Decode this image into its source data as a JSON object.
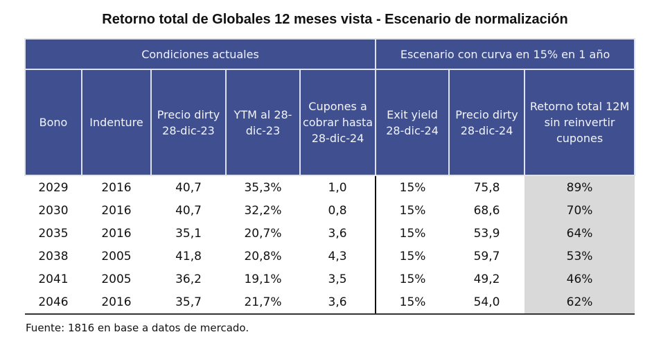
{
  "title": "Retorno total de Globales 12 meses vista - Escenario de normalización",
  "colors": {
    "header_bg": "#3f4f8f",
    "highlight_bg": "#d9d9d9"
  },
  "chart_data": {
    "type": "table",
    "title": "Retorno total de Globales 12 meses vista - Escenario de normalización",
    "groups": [
      "Condiciones actuales",
      "Escenario con curva en 15% en 1 año"
    ],
    "columns": [
      "Bono",
      "Indenture",
      "Precio dirty 28-dic-23",
      "YTM al 28-dic-23",
      "Cupones a cobrar hasta 28-dic-24",
      "Exit yield 28-dic-24",
      "Precio dirty 28-dic-24",
      "Retorno total 12M sin reinvertir cupones"
    ],
    "rows": [
      [
        "2029",
        "2016",
        "40,7",
        "35,3%",
        "1,0",
        "15%",
        "75,8",
        "89%"
      ],
      [
        "2030",
        "2016",
        "40,7",
        "32,2%",
        "0,8",
        "15%",
        "68,6",
        "70%"
      ],
      [
        "2035",
        "2016",
        "35,1",
        "20,7%",
        "3,6",
        "15%",
        "53,9",
        "64%"
      ],
      [
        "2038",
        "2005",
        "41,8",
        "20,8%",
        "4,3",
        "15%",
        "59,7",
        "53%"
      ],
      [
        "2041",
        "2005",
        "36,2",
        "19,1%",
        "3,5",
        "15%",
        "49,2",
        "46%"
      ],
      [
        "2046",
        "2016",
        "35,7",
        "21,7%",
        "3,6",
        "15%",
        "54,0",
        "62%"
      ]
    ]
  },
  "footnote": "Fuente: 1816 en base a datos de mercado."
}
